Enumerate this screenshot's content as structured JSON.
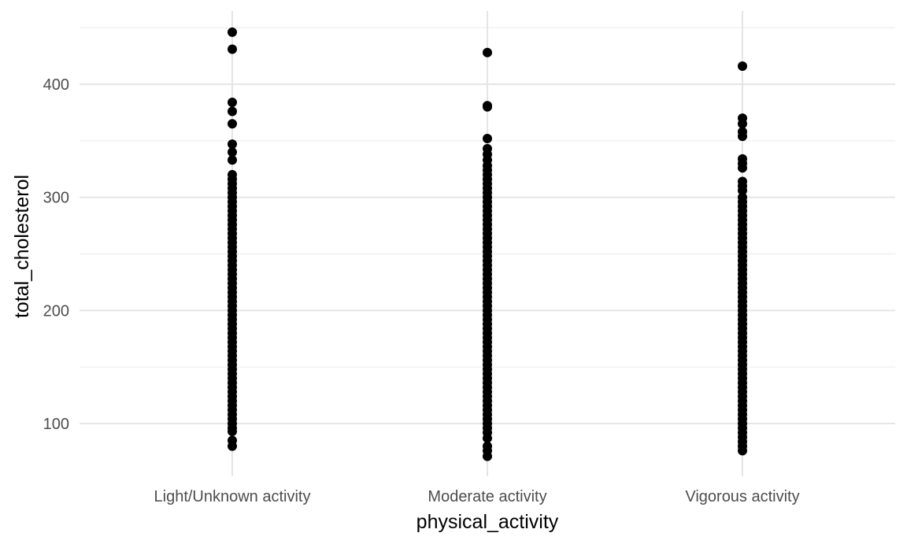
{
  "chart_data": {
    "type": "scatter",
    "title": "",
    "xlabel": "physical_activity",
    "ylabel": "total_cholesterol",
    "categories": [
      "Light/Unknown activity",
      "Moderate activity",
      "Vigorous activity"
    ],
    "ylim": [
      55,
      450
    ],
    "yticks": [
      100,
      200,
      300,
      400
    ],
    "grid": true,
    "point_color": "#000000",
    "series": [
      {
        "category": "Light/Unknown activity",
        "values": [
          446,
          431,
          384,
          376,
          365,
          347,
          340,
          333,
          320,
          316,
          312,
          308,
          304,
          300,
          296,
          292,
          288,
          284,
          280,
          276,
          272,
          268,
          264,
          260,
          256,
          252,
          248,
          244,
          240,
          236,
          232,
          228,
          224,
          220,
          216,
          212,
          208,
          204,
          200,
          196,
          192,
          188,
          184,
          180,
          176,
          172,
          168,
          164,
          160,
          156,
          152,
          148,
          144,
          140,
          136,
          132,
          128,
          124,
          120,
          116,
          112,
          108,
          104,
          100,
          96,
          93,
          85,
          80
        ]
      },
      {
        "category": "Moderate activity",
        "values": [
          428,
          381,
          380,
          352,
          343,
          338,
          333,
          328,
          324,
          320,
          316,
          312,
          308,
          304,
          300,
          296,
          292,
          288,
          284,
          280,
          276,
          272,
          268,
          264,
          260,
          256,
          252,
          248,
          244,
          240,
          236,
          232,
          228,
          224,
          220,
          216,
          212,
          208,
          204,
          200,
          196,
          192,
          188,
          184,
          180,
          176,
          172,
          168,
          164,
          160,
          156,
          152,
          148,
          144,
          140,
          136,
          132,
          128,
          124,
          120,
          116,
          112,
          108,
          104,
          100,
          96,
          92,
          87,
          80,
          76,
          71
        ]
      },
      {
        "category": "Vigorous activity",
        "values": [
          416,
          370,
          365,
          358,
          354,
          334,
          330,
          326,
          314,
          310,
          306,
          300,
          296,
          292,
          288,
          284,
          280,
          276,
          272,
          268,
          264,
          260,
          256,
          252,
          248,
          244,
          240,
          236,
          232,
          228,
          224,
          220,
          216,
          212,
          208,
          204,
          200,
          196,
          192,
          188,
          184,
          180,
          176,
          172,
          168,
          164,
          160,
          156,
          152,
          148,
          144,
          140,
          136,
          132,
          128,
          124,
          120,
          116,
          112,
          108,
          104,
          100,
          96,
          92,
          88,
          84,
          80,
          76
        ]
      }
    ]
  }
}
